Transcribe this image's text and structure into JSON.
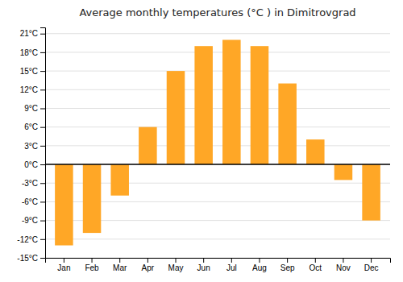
{
  "chart_data": {
    "type": "bar",
    "title": "Average monthly temperatures (°C ) in Dimitrovgrad",
    "categories": [
      "Jan",
      "Feb",
      "Mar",
      "Apr",
      "May",
      "Jun",
      "Jul",
      "Aug",
      "Sep",
      "Oct",
      "Nov",
      "Dec"
    ],
    "values": [
      -13,
      -11,
      -5,
      6,
      15,
      19,
      20,
      19,
      13,
      4,
      -2.5,
      -9
    ],
    "color": "#FFA726",
    "ylim": [
      -15,
      22
    ],
    "yticks": [
      {
        "value": -15,
        "label": "-15°C"
      },
      {
        "value": -12,
        "label": "-12°C"
      },
      {
        "value": -9,
        "label": "-9°C"
      },
      {
        "value": -6,
        "label": "-6°C"
      },
      {
        "value": -3,
        "label": "-3°C"
      },
      {
        "value": 0,
        "label": "0°C"
      },
      {
        "value": 3,
        "label": "3°C"
      },
      {
        "value": 6,
        "label": "6°C"
      },
      {
        "value": 9,
        "label": "9°C"
      },
      {
        "value": 12,
        "label": "12°C"
      },
      {
        "value": 15,
        "label": "15°C"
      },
      {
        "value": 18,
        "label": "18°C"
      },
      {
        "value": 21,
        "label": "21°C"
      }
    ],
    "grid": true
  }
}
